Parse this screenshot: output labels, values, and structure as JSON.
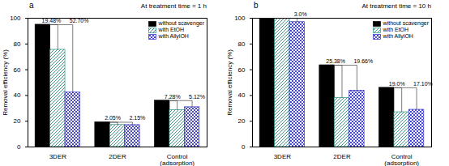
{
  "chart_data": [
    {
      "type": "bar",
      "panel_label": "a",
      "title": "At treatment time = 1 h",
      "categories": [
        "3DER",
        "2DER",
        "Control\n(adsorption)"
      ],
      "series": [
        {
          "name": "without scavenger",
          "color": "#000000",
          "values": [
            95,
            19.2,
            36
          ]
        },
        {
          "name": "with EtOH",
          "color": "#2a8f7f",
          "values": [
            75.5,
            17.15,
            28.7
          ]
        },
        {
          "name": "with AllylOH",
          "color": "#3333cc",
          "values": [
            42.3,
            17.05,
            30.9
          ]
        }
      ],
      "ylabel": "Removal efficiency (%)",
      "ylim": [
        0,
        100
      ],
      "yticks": [
        0,
        20,
        40,
        60,
        80,
        100
      ],
      "legend": "upper right",
      "annotations": [
        {
          "text": "19.48%",
          "category": "3DER",
          "series": "with EtOH"
        },
        {
          "text": "52.70%",
          "category": "3DER",
          "series": "with AllylOH"
        },
        {
          "text": "2.05%",
          "category": "2DER",
          "series": "with EtOH"
        },
        {
          "text": "2.15%",
          "category": "2DER",
          "series": "with AllylOH"
        },
        {
          "text": "7.28%",
          "category": "Control\n(adsorption)",
          "series": "with EtOH"
        },
        {
          "text": "5.12%",
          "category": "Control\n(adsorption)",
          "series": "with AllylOH"
        }
      ]
    },
    {
      "type": "bar",
      "panel_label": "b",
      "title": "At treatment time = 10 h",
      "categories": [
        "3DER",
        "2DER",
        "Control\n(adsorption)"
      ],
      "series": [
        {
          "name": "without scavenger",
          "color": "#000000",
          "values": [
            100,
            63.5,
            46
          ]
        },
        {
          "name": "with EtOH",
          "color": "#2a8f7f",
          "values": [
            100,
            38.1,
            27
          ]
        },
        {
          "name": "with AllylOH",
          "color": "#3333cc",
          "values": [
            97,
            43.8,
            28.9
          ]
        }
      ],
      "ylabel": "Removal efficiency (%)",
      "ylim": [
        0,
        100
      ],
      "yticks": [
        0,
        20,
        40,
        60,
        80,
        100
      ],
      "legend": "upper right",
      "annotations": [
        {
          "text": "3.0%",
          "category": "3DER",
          "series": "with AllylOH"
        },
        {
          "text": "25.38%",
          "category": "2DER",
          "series": "with EtOH"
        },
        {
          "text": "19.66%",
          "category": "2DER",
          "series": "with AllylOH"
        },
        {
          "text": "19.0%",
          "category": "Control\n(adsorption)",
          "series": "with EtOH"
        },
        {
          "text": "17.10%",
          "category": "Control\n(adsorption)",
          "series": "with AllylOH"
        }
      ]
    }
  ]
}
